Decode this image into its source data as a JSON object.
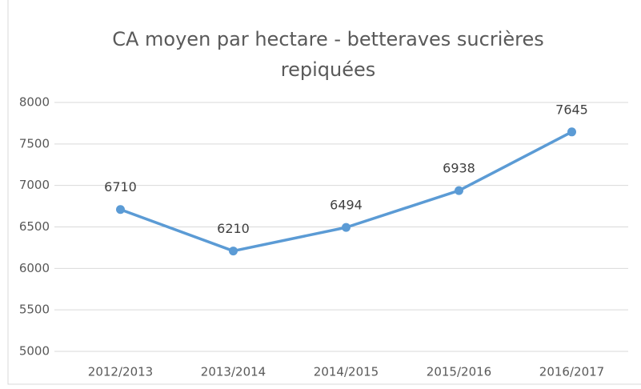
{
  "chart_data": {
    "type": "line",
    "title": "CA moyen par hectare - betteraves sucrières repiquées",
    "categories": [
      "2012/2013",
      "2013/2014",
      "2014/2015",
      "2015/2016",
      "2016/2017"
    ],
    "series": [
      {
        "name": "CA moyen par hectare",
        "color": "#5b9bd5",
        "values": [
          6710,
          6210,
          6494,
          6938,
          7645
        ]
      }
    ],
    "ylim": [
      5000,
      8000
    ],
    "yticks": [
      5000,
      5500,
      6000,
      6500,
      7000,
      7500,
      8000
    ],
    "grid": true,
    "data_labels": true
  }
}
